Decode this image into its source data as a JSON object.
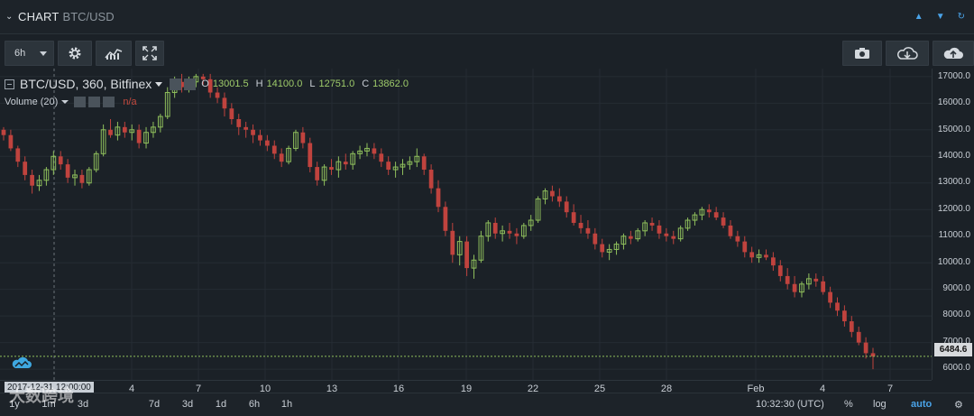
{
  "header": {
    "title": "CHART",
    "subtitle": "BTC/USD"
  },
  "toolbar": {
    "timeframe": "6h"
  },
  "legend": {
    "symbol": "BTC/USD, 360, Bitfinex",
    "ohlc": [
      {
        "key": "O",
        "value": "13001.5"
      },
      {
        "key": "H",
        "value": "14100.0"
      },
      {
        "key": "L",
        "value": "12751.0"
      },
      {
        "key": "C",
        "value": "13862.0"
      }
    ],
    "volume_label": "Volume (20)",
    "volume_value": "n/a"
  },
  "price_axis": {
    "labels": [
      "17000.0",
      "16000.0",
      "15000.0",
      "14000.0",
      "13000.0",
      "12000.0",
      "11000.0",
      "10000.0",
      "9000.0",
      "8000.0",
      "7000.0",
      "6000.0"
    ],
    "current_price": "6484.6"
  },
  "time_axis": {
    "labels": [
      "4",
      "7",
      "10",
      "13",
      "16",
      "19",
      "22",
      "25",
      "28",
      "Feb",
      "4",
      "7"
    ],
    "crosshair_time": "2017-12-31 12:00:00"
  },
  "bottom_bar": {
    "ranges": [
      "1y",
      "1m",
      "3d",
      "7d",
      "3d",
      "1d",
      "6h",
      "1h"
    ],
    "clock": "10:32:30 (UTC)",
    "percent": "%",
    "log": "log",
    "auto": "auto"
  },
  "watermark": "大数跨境",
  "colors": {
    "up": "#8fbf5c",
    "down": "#c0433e",
    "accent": "#4aa3e8",
    "background": "#1b2127"
  },
  "chart_data": {
    "type": "candlestick",
    "ylim": [
      6000,
      17000
    ],
    "candles": [
      [
        15000,
        15100,
        14600,
        14800
      ],
      [
        14800,
        15000,
        14200,
        14300
      ],
      [
        14300,
        14400,
        13600,
        13800
      ],
      [
        13800,
        14000,
        13100,
        13300
      ],
      [
        13300,
        13500,
        12600,
        12900
      ],
      [
        12900,
        13300,
        12700,
        13100
      ],
      [
        13100,
        13600,
        12900,
        13500
      ],
      [
        13500,
        14200,
        13300,
        14000
      ],
      [
        14000,
        14200,
        13500,
        13700
      ],
      [
        13700,
        13900,
        13000,
        13200
      ],
      [
        13200,
        13500,
        12900,
        13300
      ],
      [
        13300,
        13500,
        12800,
        13000
      ],
      [
        13000,
        13600,
        12900,
        13500
      ],
      [
        13500,
        14200,
        13400,
        14100
      ],
      [
        14100,
        15200,
        14000,
        15000
      ],
      [
        15000,
        15400,
        14700,
        14800
      ],
      [
        14800,
        15300,
        14600,
        15100
      ],
      [
        15100,
        15300,
        14700,
        14900
      ],
      [
        14900,
        15200,
        14600,
        15000
      ],
      [
        15000,
        15200,
        14300,
        14500
      ],
      [
        14500,
        15100,
        14300,
        14900
      ],
      [
        14900,
        15300,
        14700,
        15100
      ],
      [
        15100,
        15600,
        14900,
        15500
      ],
      [
        15500,
        16600,
        15400,
        16400
      ],
      [
        16400,
        17000,
        16200,
        16800
      ],
      [
        16800,
        17100,
        16400,
        16600
      ],
      [
        16600,
        17000,
        16400,
        16800
      ],
      [
        16800,
        17100,
        16600,
        17000
      ],
      [
        17000,
        17100,
        16700,
        16900
      ],
      [
        16900,
        17100,
        16200,
        16400
      ],
      [
        16400,
        16600,
        16000,
        16200
      ],
      [
        16200,
        16400,
        15500,
        15800
      ],
      [
        15800,
        16000,
        15200,
        15400
      ],
      [
        15400,
        15600,
        14800,
        15100
      ],
      [
        15100,
        15300,
        14700,
        15000
      ],
      [
        15000,
        15200,
        14500,
        14800
      ],
      [
        14800,
        15000,
        14400,
        14600
      ],
      [
        14600,
        14800,
        14200,
        14400
      ],
      [
        14400,
        14600,
        13900,
        14100
      ],
      [
        14100,
        14300,
        13600,
        13800
      ],
      [
        13800,
        14400,
        13700,
        14300
      ],
      [
        14300,
        15000,
        14200,
        14900
      ],
      [
        14900,
        15100,
        14300,
        14500
      ],
      [
        14500,
        14700,
        13400,
        13600
      ],
      [
        13600,
        13800,
        12900,
        13100
      ],
      [
        13100,
        13700,
        12900,
        13600
      ],
      [
        13600,
        13900,
        13300,
        13500
      ],
      [
        13500,
        14000,
        13200,
        13800
      ],
      [
        13800,
        14100,
        13500,
        13700
      ],
      [
        13700,
        14200,
        13500,
        14100
      ],
      [
        14100,
        14400,
        13900,
        14200
      ],
      [
        14200,
        14500,
        14000,
        14300
      ],
      [
        14300,
        14500,
        13900,
        14100
      ],
      [
        14100,
        14300,
        13600,
        13800
      ],
      [
        13800,
        14000,
        13300,
        13500
      ],
      [
        13500,
        13800,
        13200,
        13600
      ],
      [
        13600,
        13900,
        13300,
        13700
      ],
      [
        13700,
        14000,
        13500,
        13800
      ],
      [
        13800,
        14300,
        13600,
        14000
      ],
      [
        14000,
        14100,
        13300,
        13500
      ],
      [
        13500,
        13700,
        12600,
        12800
      ],
      [
        12800,
        13100,
        11900,
        12100
      ],
      [
        12100,
        12300,
        11000,
        11200
      ],
      [
        11200,
        11500,
        10000,
        10300
      ],
      [
        10300,
        11000,
        9900,
        10800
      ],
      [
        10800,
        11000,
        9500,
        9800
      ],
      [
        9800,
        10300,
        9400,
        10100
      ],
      [
        10100,
        11200,
        10000,
        11000
      ],
      [
        11000,
        11600,
        10800,
        11500
      ],
      [
        11500,
        11700,
        10900,
        11100
      ],
      [
        11100,
        11400,
        10800,
        11200
      ],
      [
        11200,
        11500,
        10900,
        11100
      ],
      [
        11100,
        11300,
        10700,
        11000
      ],
      [
        11000,
        11500,
        10900,
        11400
      ],
      [
        11400,
        11800,
        11200,
        11600
      ],
      [
        11600,
        12500,
        11500,
        12400
      ],
      [
        12400,
        12800,
        12200,
        12700
      ],
      [
        12700,
        12900,
        12300,
        12500
      ],
      [
        12500,
        12800,
        12100,
        12300
      ],
      [
        12300,
        12500,
        11700,
        11900
      ],
      [
        11900,
        12200,
        11400,
        11500
      ],
      [
        11500,
        11800,
        11100,
        11300
      ],
      [
        11300,
        11600,
        10900,
        11100
      ],
      [
        11100,
        11300,
        10500,
        10700
      ],
      [
        10700,
        10900,
        10200,
        10400
      ],
      [
        10400,
        10700,
        10100,
        10500
      ],
      [
        10500,
        10800,
        10300,
        10700
      ],
      [
        10700,
        11100,
        10500,
        11000
      ],
      [
        11000,
        11200,
        10700,
        10900
      ],
      [
        10900,
        11300,
        10800,
        11200
      ],
      [
        11200,
        11600,
        11000,
        11500
      ],
      [
        11500,
        11700,
        11200,
        11400
      ],
      [
        11400,
        11600,
        10900,
        11100
      ],
      [
        11100,
        11300,
        10800,
        11000
      ],
      [
        11000,
        11200,
        10700,
        10900
      ],
      [
        10900,
        11400,
        10800,
        11300
      ],
      [
        11300,
        11700,
        11200,
        11600
      ],
      [
        11600,
        11900,
        11400,
        11800
      ],
      [
        11800,
        12100,
        11600,
        12000
      ],
      [
        12000,
        12200,
        11700,
        11900
      ],
      [
        11900,
        12100,
        11600,
        11700
      ],
      [
        11700,
        11900,
        11300,
        11400
      ],
      [
        11400,
        11600,
        10900,
        11000
      ],
      [
        11000,
        11200,
        10600,
        10800
      ],
      [
        10800,
        11000,
        10200,
        10400
      ],
      [
        10400,
        10600,
        10000,
        10200
      ],
      [
        10200,
        10500,
        10000,
        10300
      ],
      [
        10300,
        10500,
        10100,
        10200
      ],
      [
        10200,
        10400,
        9700,
        9900
      ],
      [
        9900,
        10100,
        9300,
        9500
      ],
      [
        9500,
        9800,
        9000,
        9200
      ],
      [
        9200,
        9500,
        8700,
        8900
      ],
      [
        8900,
        9300,
        8700,
        9200
      ],
      [
        9200,
        9600,
        9000,
        9400
      ],
      [
        9400,
        9600,
        9100,
        9300
      ],
      [
        9300,
        9500,
        8800,
        8900
      ],
      [
        8900,
        9100,
        8300,
        8500
      ],
      [
        8500,
        8700,
        8000,
        8200
      ],
      [
        8200,
        8400,
        7600,
        7800
      ],
      [
        7800,
        8000,
        7200,
        7400
      ],
      [
        7400,
        7600,
        6900,
        7000
      ],
      [
        7000,
        7200,
        6400,
        6600
      ],
      [
        6600,
        6800,
        6000,
        6480
      ]
    ]
  }
}
